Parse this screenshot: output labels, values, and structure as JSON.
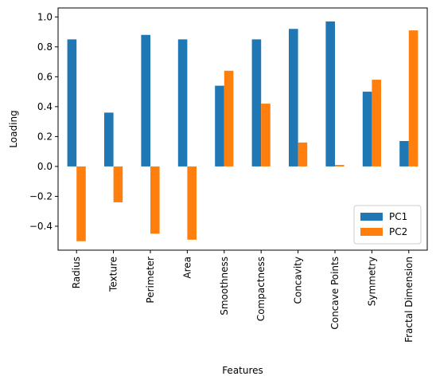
{
  "chart_data": {
    "type": "bar",
    "categories": [
      "Radius",
      "Texture",
      "Perimeter",
      "Area",
      "Smoothness",
      "Compactness",
      "Concavity",
      "Concave Points",
      "Symmetry",
      "Fractal Dimension"
    ],
    "series": [
      {
        "name": "PC1",
        "color": "#1f77b4",
        "values": [
          0.85,
          0.36,
          0.88,
          0.85,
          0.54,
          0.85,
          0.92,
          0.97,
          0.5,
          0.17
        ]
      },
      {
        "name": "PC2",
        "color": "#ff7f0e",
        "values": [
          -0.5,
          -0.24,
          -0.45,
          -0.49,
          0.64,
          0.42,
          0.16,
          0.01,
          0.58,
          0.91
        ]
      }
    ],
    "title": "",
    "xlabel": "Features",
    "ylabel": "Loading",
    "ylim": [
      -0.56,
      1.06
    ],
    "yticks": [
      -0.4,
      -0.2,
      0.0,
      0.2,
      0.4,
      0.6,
      0.8,
      1.0
    ],
    "ytick_labels": [
      "−0.4",
      "−0.2",
      "0.0",
      "0.2",
      "0.4",
      "0.6",
      "0.8",
      "1.0"
    ],
    "legend_position": "lower-right",
    "grid": false
  }
}
